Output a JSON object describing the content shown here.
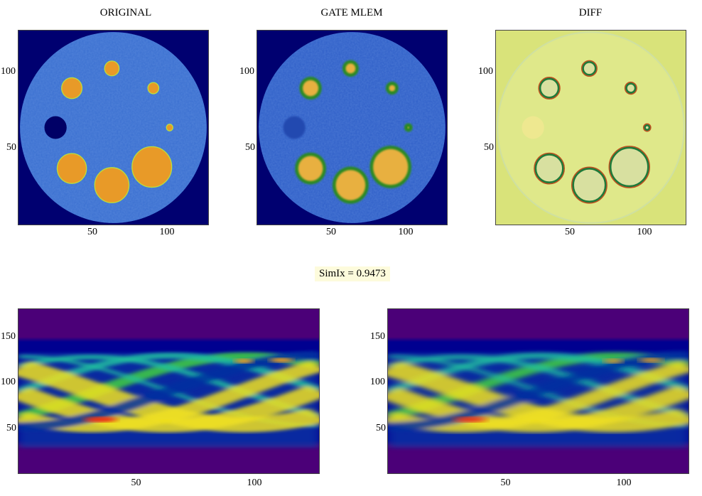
{
  "chart_data": [
    {
      "type": "heatmap",
      "title": "ORIGINAL",
      "xlim": [
        0,
        128
      ],
      "ylim": [
        0,
        128
      ],
      "x_ticks": [
        "50",
        "100"
      ],
      "y_ticks": [
        "50",
        "100"
      ],
      "colormap": "jet"
    },
    {
      "type": "heatmap",
      "title": "GATE MLEM",
      "xlim": [
        0,
        128
      ],
      "ylim": [
        0,
        128
      ],
      "x_ticks": [
        "50",
        "100"
      ],
      "y_ticks": [
        "50",
        "100"
      ],
      "colormap": "jet"
    },
    {
      "type": "heatmap",
      "title": "DIFF",
      "xlim": [
        0,
        128
      ],
      "ylim": [
        0,
        128
      ],
      "x_ticks": [
        "50",
        "100"
      ],
      "y_ticks": [
        "50",
        "100"
      ],
      "colormap": "diverging"
    },
    {
      "type": "heatmap",
      "title": "",
      "xlim": [
        0,
        128
      ],
      "ylim": [
        0,
        180
      ],
      "x_ticks": [
        "50",
        "100"
      ],
      "y_ticks": [
        "50",
        "100",
        "150"
      ],
      "colormap": "jet"
    },
    {
      "type": "heatmap",
      "title": "",
      "xlim": [
        0,
        128
      ],
      "ylim": [
        0,
        180
      ],
      "x_ticks": [
        "50",
        "100"
      ],
      "y_ticks": [
        "50",
        "100",
        "150"
      ],
      "colormap": "jet"
    }
  ],
  "simix": {
    "label": "SimIx = 0.9473",
    "value": 0.9473
  },
  "colors": {
    "background": "#000070",
    "phantom": "#3a6fd0",
    "hot": "#e8a030",
    "diff_bg": "#d9e37a",
    "sino_bg": "#4b0078"
  }
}
